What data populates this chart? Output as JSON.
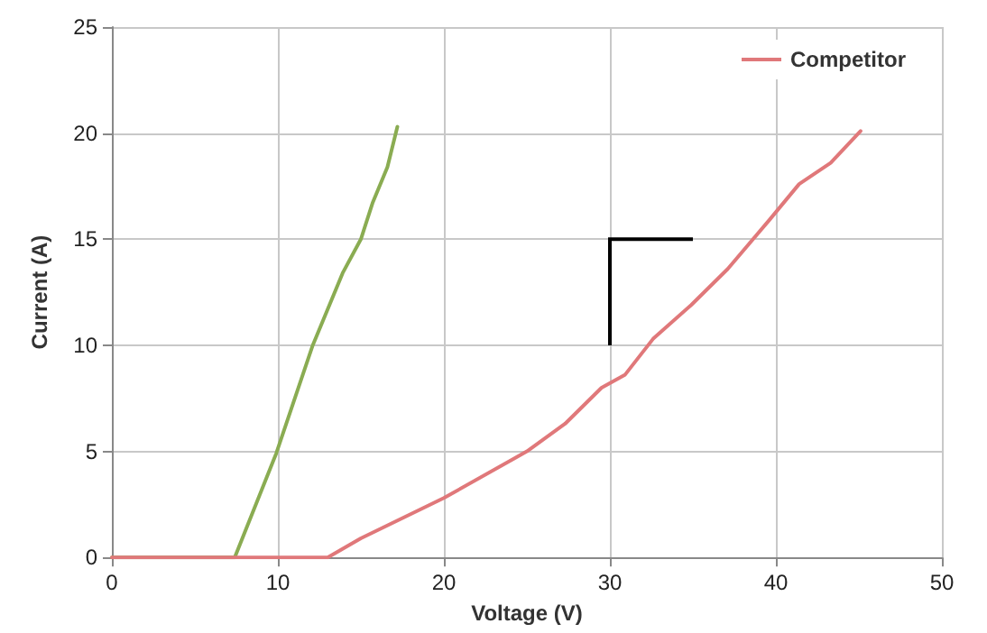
{
  "chart_data": {
    "type": "line",
    "xlabel": "Voltage (V)",
    "ylabel": "Current (A)",
    "xlim": [
      0,
      50
    ],
    "xticks": [
      0,
      10,
      20,
      30,
      40,
      50
    ],
    "ylim": [
      0,
      25
    ],
    "yticks": [
      0,
      5,
      10,
      15,
      20,
      25
    ],
    "grid": true,
    "legend": "top right",
    "marker": "none",
    "line_style": "solid",
    "series": [
      {
        "color": "#8aac52",
        "x": [
          0,
          7.4,
          9.9,
          12.1,
          13.9,
          15,
          15.7,
          16.6,
          17.2
        ],
        "values": [
          0,
          0,
          4.9,
          10,
          13.4,
          15,
          16.7,
          18.4,
          20.3
        ]
      },
      {
        "name": "Competitor",
        "color": "#e0787a",
        "x": [
          0,
          13,
          15,
          20,
          25,
          27.3,
          29.5,
          30.9,
          32.6,
          34.9,
          37.1,
          39.6,
          41.4,
          43.3,
          45.1
        ],
        "values": [
          0,
          0,
          0.9,
          2.8,
          5,
          6.3,
          8,
          8.6,
          10.3,
          11.9,
          13.6,
          15.9,
          17.6,
          18.6,
          20.1
        ]
      }
    ]
  }
}
